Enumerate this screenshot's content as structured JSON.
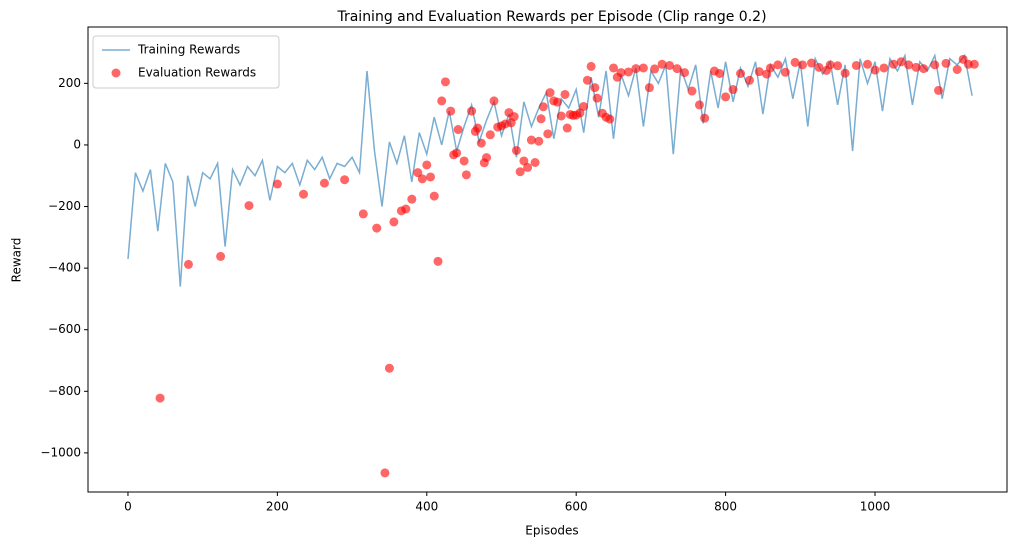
{
  "chart_data": {
    "type": "line",
    "title": "Training and Evaluation Rewards per Episode (Clip range 0.2)",
    "x_label": "Episodes",
    "y_label": "Reward",
    "xlim": [
      -53.5,
      1176.7
    ],
    "ylim": [
      -1127,
      383
    ],
    "xticks": [
      0,
      200,
      400,
      600,
      800,
      1000
    ],
    "yticks": [
      {
        "value": -1000,
        "label": "−1000"
      },
      {
        "value": -800,
        "label": "−800"
      },
      {
        "value": -600,
        "label": "−600"
      },
      {
        "value": -400,
        "label": "−400"
      },
      {
        "value": -200,
        "label": "−200"
      },
      0,
      200
    ],
    "legend": "upper left",
    "series": [
      {
        "name": "Training Rewards",
        "type": "line",
        "color": "#1f77b4",
        "x": [
          0,
          10,
          20,
          30,
          40,
          50,
          60,
          70,
          80,
          90,
          100,
          110,
          120,
          130,
          140,
          150,
          160,
          170,
          180,
          190,
          200,
          210,
          220,
          230,
          240,
          250,
          260,
          270,
          280,
          290,
          300,
          310,
          320,
          330,
          340,
          350,
          360,
          370,
          380,
          390,
          400,
          410,
          420,
          430,
          440,
          450,
          460,
          470,
          480,
          490,
          500,
          510,
          520,
          530,
          540,
          550,
          560,
          570,
          580,
          590,
          600,
          610,
          620,
          630,
          640,
          650,
          660,
          670,
          680,
          690,
          700,
          710,
          720,
          730,
          740,
          750,
          760,
          770,
          780,
          790,
          800,
          810,
          820,
          830,
          840,
          850,
          860,
          870,
          880,
          890,
          900,
          910,
          920,
          930,
          940,
          950,
          960,
          970,
          980,
          990,
          1000,
          1010,
          1020,
          1030,
          1040,
          1050,
          1060,
          1070,
          1080,
          1090,
          1100,
          1110,
          1120,
          1130
        ],
        "values": [
          -370,
          -90,
          -150,
          -80,
          -280,
          -60,
          -120,
          -460,
          -100,
          -200,
          -90,
          -110,
          -60,
          -330,
          -80,
          -130,
          -70,
          -100,
          -50,
          -180,
          -70,
          -90,
          -60,
          -130,
          -50,
          -80,
          -40,
          -110,
          -60,
          -70,
          -40,
          -90,
          240,
          -20,
          -200,
          10,
          -60,
          30,
          -120,
          40,
          -30,
          90,
          0,
          110,
          -20,
          60,
          130,
          10,
          80,
          140,
          30,
          100,
          -40,
          140,
          60,
          120,
          170,
          20,
          150,
          120,
          180,
          40,
          220,
          90,
          240,
          20,
          230,
          160,
          250,
          60,
          240,
          200,
          260,
          -30,
          250,
          180,
          260,
          70,
          240,
          120,
          270,
          140,
          250,
          190,
          270,
          100,
          260,
          220,
          280,
          150,
          270,
          60,
          280,
          230,
          270,
          130,
          260,
          -20,
          280,
          200,
          270,
          110,
          280,
          240,
          290,
          130,
          270,
          240,
          290,
          150,
          280,
          260,
          290,
          160
        ]
      },
      {
        "name": "Evaluation Rewards",
        "type": "scatter",
        "color": "#ff0000",
        "x": [
          43,
          81,
          124,
          162,
          200,
          235,
          263,
          290,
          315,
          333,
          344,
          350,
          356,
          366,
          372,
          380,
          388,
          394,
          400,
          405,
          410,
          415,
          420,
          425,
          432,
          436,
          440,
          442,
          450,
          453,
          460,
          465,
          468,
          473,
          477,
          480,
          485,
          490,
          495,
          500,
          505,
          510,
          513,
          517,
          520,
          525,
          530,
          535,
          540,
          545,
          550,
          553,
          556,
          562,
          565,
          570,
          575,
          580,
          585,
          588,
          592,
          596,
          600,
          605,
          610,
          615,
          620,
          625,
          628,
          635,
          640,
          645,
          650,
          655,
          660,
          670,
          680,
          690,
          698,
          705,
          715,
          725,
          735,
          745,
          755,
          765,
          772,
          785,
          792,
          800,
          810,
          820,
          832,
          845,
          855,
          860,
          870,
          880,
          893,
          903,
          915,
          925,
          935,
          940,
          950,
          960,
          975,
          990,
          1000,
          1012,
          1025,
          1035,
          1045,
          1055,
          1065,
          1080,
          1085,
          1095,
          1110,
          1118,
          1125,
          1133
        ],
        "values": [
          -822,
          -388,
          -362,
          -197,
          -127,
          -160,
          -124,
          -113,
          -224,
          -270,
          -1065,
          -725,
          -250,
          -214,
          -208,
          -176,
          -90,
          -110,
          -65,
          -104,
          -166,
          -378,
          143,
          205,
          110,
          -32,
          -26,
          50,
          -52,
          -97,
          110,
          44,
          55,
          6,
          -58,
          -41,
          33,
          143,
          58,
          62,
          68,
          105,
          72,
          92,
          -18,
          -87,
          -52,
          -73,
          16,
          -57,
          12,
          85,
          124,
          36,
          170,
          143,
          139,
          94,
          164,
          55,
          99,
          96,
          97,
          104,
          125,
          210,
          255,
          186,
          152,
          103,
          90,
          84,
          250,
          220,
          235,
          237,
          248,
          250,
          186,
          247,
          262,
          258,
          248,
          235,
          175,
          130,
          87,
          240,
          232,
          156,
          180,
          232,
          210,
          238,
          230,
          250,
          260,
          236,
          268,
          260,
          266,
          252,
          242,
          260,
          257,
          233,
          258,
          262,
          243,
          250,
          262,
          270,
          260,
          252,
          248,
          260,
          177,
          265,
          245,
          278,
          262,
          262
        ]
      }
    ]
  }
}
